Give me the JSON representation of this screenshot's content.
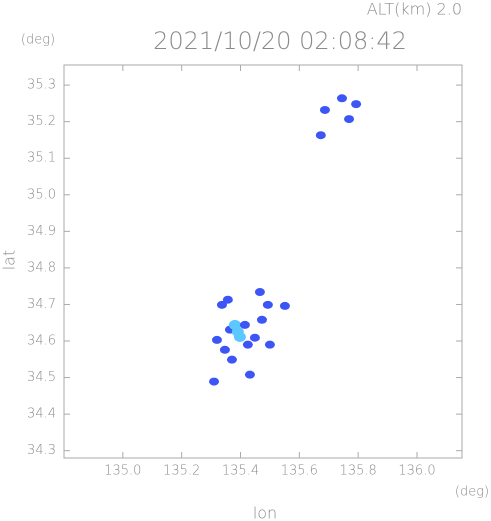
{
  "chart_data": {
    "type": "scatter",
    "title": "2021/10/20 02:08:42",
    "annotation": "ALT(km) 2.0",
    "y_unit": "(deg)",
    "x_unit": "(deg)",
    "x_label": "lon",
    "y_label": "lat",
    "xlim": [
      134.8,
      136.153
    ],
    "ylim": [
      34.28,
      35.355
    ],
    "xticks": [
      {
        "value": 135.0,
        "label": "135.0"
      },
      135.2,
      135.4,
      135.6,
      135.8,
      {
        "value": 136.0,
        "label": "136.0"
      }
    ],
    "yticks": [
      34.3,
      34.4,
      34.5,
      34.6,
      34.7,
      34.8,
      34.9,
      {
        "value": 35.0,
        "label": "35.0"
      },
      35.1,
      35.2,
      35.3
    ],
    "x": [
      135.687,
      135.745,
      135.793,
      135.769,
      135.673,
      135.364,
      135.347,
      135.381,
      135.391,
      135.398,
      135.415,
      135.337,
      135.357,
      135.466,
      135.493,
      135.449,
      135.473,
      135.432,
      135.31,
      135.5,
      135.371,
      135.32,
      135.551,
      135.425
    ],
    "values": [
      35.232,
      35.264,
      35.248,
      35.207,
      35.163,
      34.631,
      34.576,
      34.644,
      34.625,
      34.611,
      34.644,
      34.699,
      34.713,
      34.734,
      34.699,
      34.609,
      34.658,
      34.508,
      34.489,
      34.59,
      34.549,
      34.603,
      34.696,
      34.59
    ],
    "color": "#3d55f5",
    "highlight_color": "#5cc8ff",
    "highlight": [
      8,
      9,
      7
    ]
  }
}
